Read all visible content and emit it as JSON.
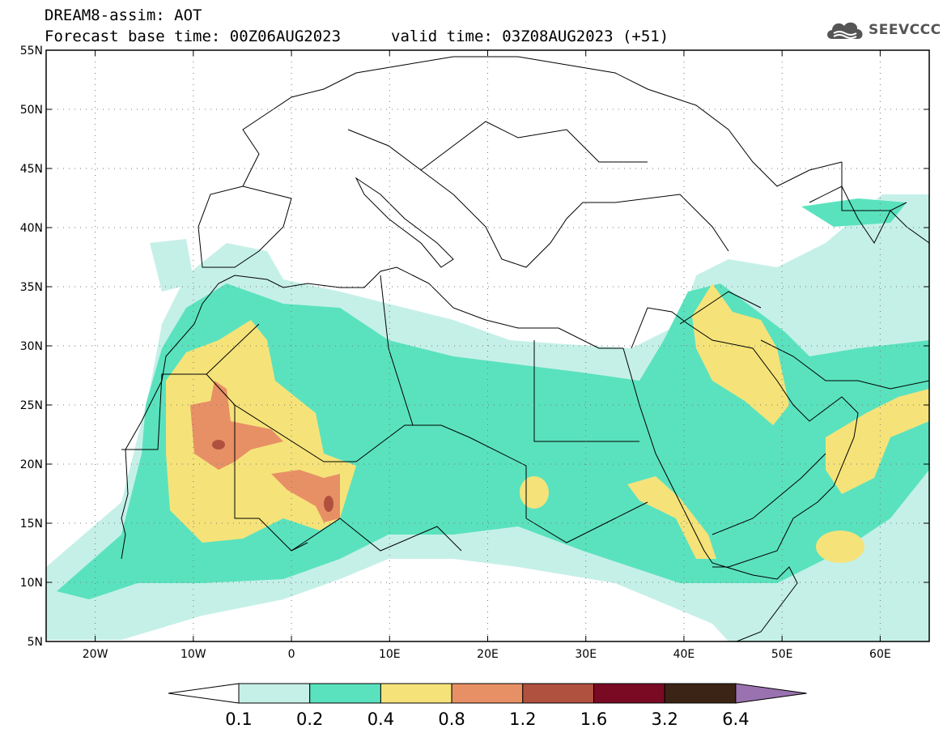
{
  "header": {
    "line1": "DREAM8-assim: AOT",
    "base_time": "Forecast base time: 00Z06AUG2023",
    "valid_time": "valid time: 03Z08AUG2023 (+51)",
    "logo_text": "SEEVCCC"
  },
  "map": {
    "lon_range": [
      -25,
      65
    ],
    "lat_range": [
      5,
      55
    ],
    "lat_ticks": [
      "55N",
      "50N",
      "45N",
      "40N",
      "35N",
      "30N",
      "25N",
      "20N",
      "15N",
      "10N",
      "5N"
    ],
    "lon_ticks": [
      "20W",
      "10W",
      "0",
      "10E",
      "20E",
      "30E",
      "40E",
      "50E",
      "60E"
    ],
    "grid": "dotted"
  },
  "colorbar": {
    "labels": [
      "0.1",
      "0.2",
      "0.4",
      "0.8",
      "1.2",
      "1.6",
      "3.2",
      "6.4"
    ],
    "colors": [
      "#c5f0e8",
      "#5ae2be",
      "#f5e37a",
      "#e89065",
      "#b0503e",
      "#7a0a24",
      "#3b2415",
      "#9b72b0"
    ]
  }
}
